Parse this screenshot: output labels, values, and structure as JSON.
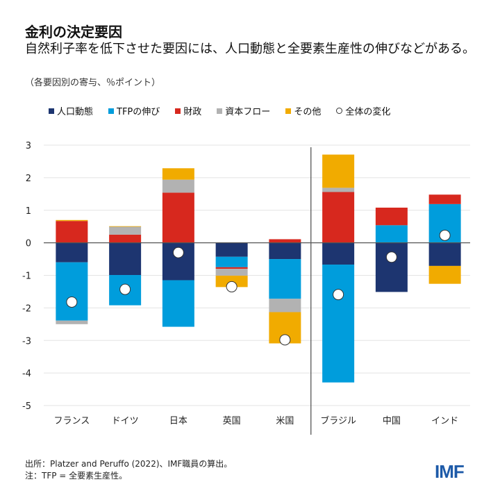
{
  "title": "金利の決定要因",
  "subtitle": "自然利子率を低下させた要因には、人口動態と全要素生産性の伸びなどがある。",
  "unit_note": "（各要因別の寄与、％ポイント）",
  "footer": {
    "source": "出所：Platzer and Peruffo (2022)、IMF職員の算出。",
    "note": "注：TFP = 全要素生産性。",
    "logo": "IMF"
  },
  "chart_data": {
    "type": "bar",
    "stacked": true,
    "categories": [
      "フランス",
      "ドイツ",
      "日本",
      "英国",
      "米国",
      "ブラジル",
      "中国",
      "インド"
    ],
    "series": [
      {
        "name": "人口動態",
        "color": "#1d3570",
        "values": [
          -0.6,
          -0.99,
          -1.15,
          -0.43,
          -0.5,
          -0.67,
          -1.51,
          -0.71
        ]
      },
      {
        "name": "TFPの伸び",
        "color": "#009ddc",
        "values": [
          -1.79,
          -0.93,
          -1.43,
          -0.32,
          -1.22,
          -3.62,
          0.54,
          1.19
        ]
      },
      {
        "name": "財政",
        "color": "#d7281e",
        "values": [
          0.67,
          0.25,
          1.54,
          -0.05,
          0.11,
          1.56,
          0.54,
          0.29
        ]
      },
      {
        "name": "資本フロー",
        "color": "#b2b2b2",
        "values": [
          -0.11,
          0.25,
          0.4,
          -0.21,
          -0.41,
          0.13,
          0,
          0
        ]
      },
      {
        "name": "その他",
        "color": "#f1ab00",
        "values": [
          0.03,
          0.01,
          0.35,
          -0.35,
          -0.96,
          1.02,
          0,
          -0.55
        ]
      }
    ],
    "total": {
      "name": "全体の変化",
      "values": [
        -1.82,
        -1.43,
        -0.3,
        -1.35,
        -2.98,
        -1.59,
        -0.44,
        0.23
      ]
    },
    "ylim": [
      -5,
      3
    ],
    "yticks": [
      "3",
      "2",
      "1",
      "0",
      "-1",
      "-2",
      "-3",
      "-4",
      "-5"
    ],
    "grid": true,
    "legend_position": "top",
    "separator_after_category": "米国"
  }
}
